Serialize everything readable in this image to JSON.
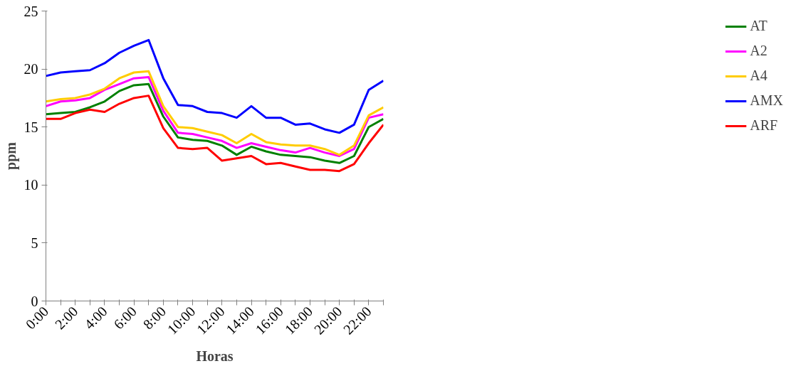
{
  "chart_data": {
    "type": "line",
    "xlabel": "Horas",
    "ylabel": "ppm",
    "categories": [
      "0:00",
      null,
      "2:00",
      null,
      "4:00",
      null,
      "6:00",
      null,
      "8:00",
      null,
      "10:00",
      null,
      "12:00",
      null,
      "14:00",
      null,
      "16:00",
      null,
      "18:00",
      null,
      "20:00",
      null,
      "22:00",
      null
    ],
    "ylim": [
      0,
      25
    ],
    "yticks": [
      0,
      5,
      10,
      15,
      20,
      25
    ],
    "grid": false,
    "legend": "right",
    "marker": "none",
    "line_style": "solid",
    "series": [
      {
        "name": "AT",
        "color": "#008000",
        "values": [
          16.1,
          16.2,
          16.3,
          16.7,
          17.2,
          18.1,
          18.6,
          18.7,
          15.9,
          14.1,
          13.9,
          13.8,
          13.4,
          12.6,
          13.3,
          12.9,
          12.6,
          12.5,
          12.4,
          12.1,
          11.9,
          12.5,
          15.0,
          15.7
        ]
      },
      {
        "name": "A2",
        "color": "#ff00ff",
        "values": [
          16.8,
          17.2,
          17.3,
          17.5,
          18.2,
          18.7,
          19.2,
          19.3,
          16.4,
          14.5,
          14.4,
          14.1,
          13.8,
          13.2,
          13.6,
          13.3,
          13.0,
          12.8,
          13.2,
          12.8,
          12.5,
          13.1,
          15.8,
          16.1
        ]
      },
      {
        "name": "A4",
        "color": "#ffcc00",
        "values": [
          17.2,
          17.4,
          17.5,
          17.8,
          18.3,
          19.2,
          19.7,
          19.8,
          16.8,
          15.0,
          14.9,
          14.6,
          14.3,
          13.6,
          14.4,
          13.7,
          13.5,
          13.4,
          13.4,
          13.1,
          12.6,
          13.4,
          16.0,
          16.7
        ]
      },
      {
        "name": "AMX",
        "color": "#0000ff",
        "values": [
          19.4,
          19.7,
          19.8,
          19.9,
          20.5,
          21.4,
          22.0,
          22.5,
          19.2,
          16.9,
          16.8,
          16.3,
          16.2,
          15.8,
          16.8,
          15.8,
          15.8,
          15.2,
          15.3,
          14.8,
          14.5,
          15.2,
          18.2,
          19.0
        ]
      },
      {
        "name": "ARF",
        "color": "#ff0000",
        "values": [
          15.7,
          15.7,
          16.2,
          16.5,
          16.3,
          17.0,
          17.5,
          17.7,
          14.9,
          13.2,
          13.1,
          13.2,
          12.1,
          12.3,
          12.5,
          11.8,
          11.9,
          11.6,
          11.3,
          11.3,
          11.2,
          11.8,
          13.6,
          15.2
        ]
      }
    ]
  }
}
